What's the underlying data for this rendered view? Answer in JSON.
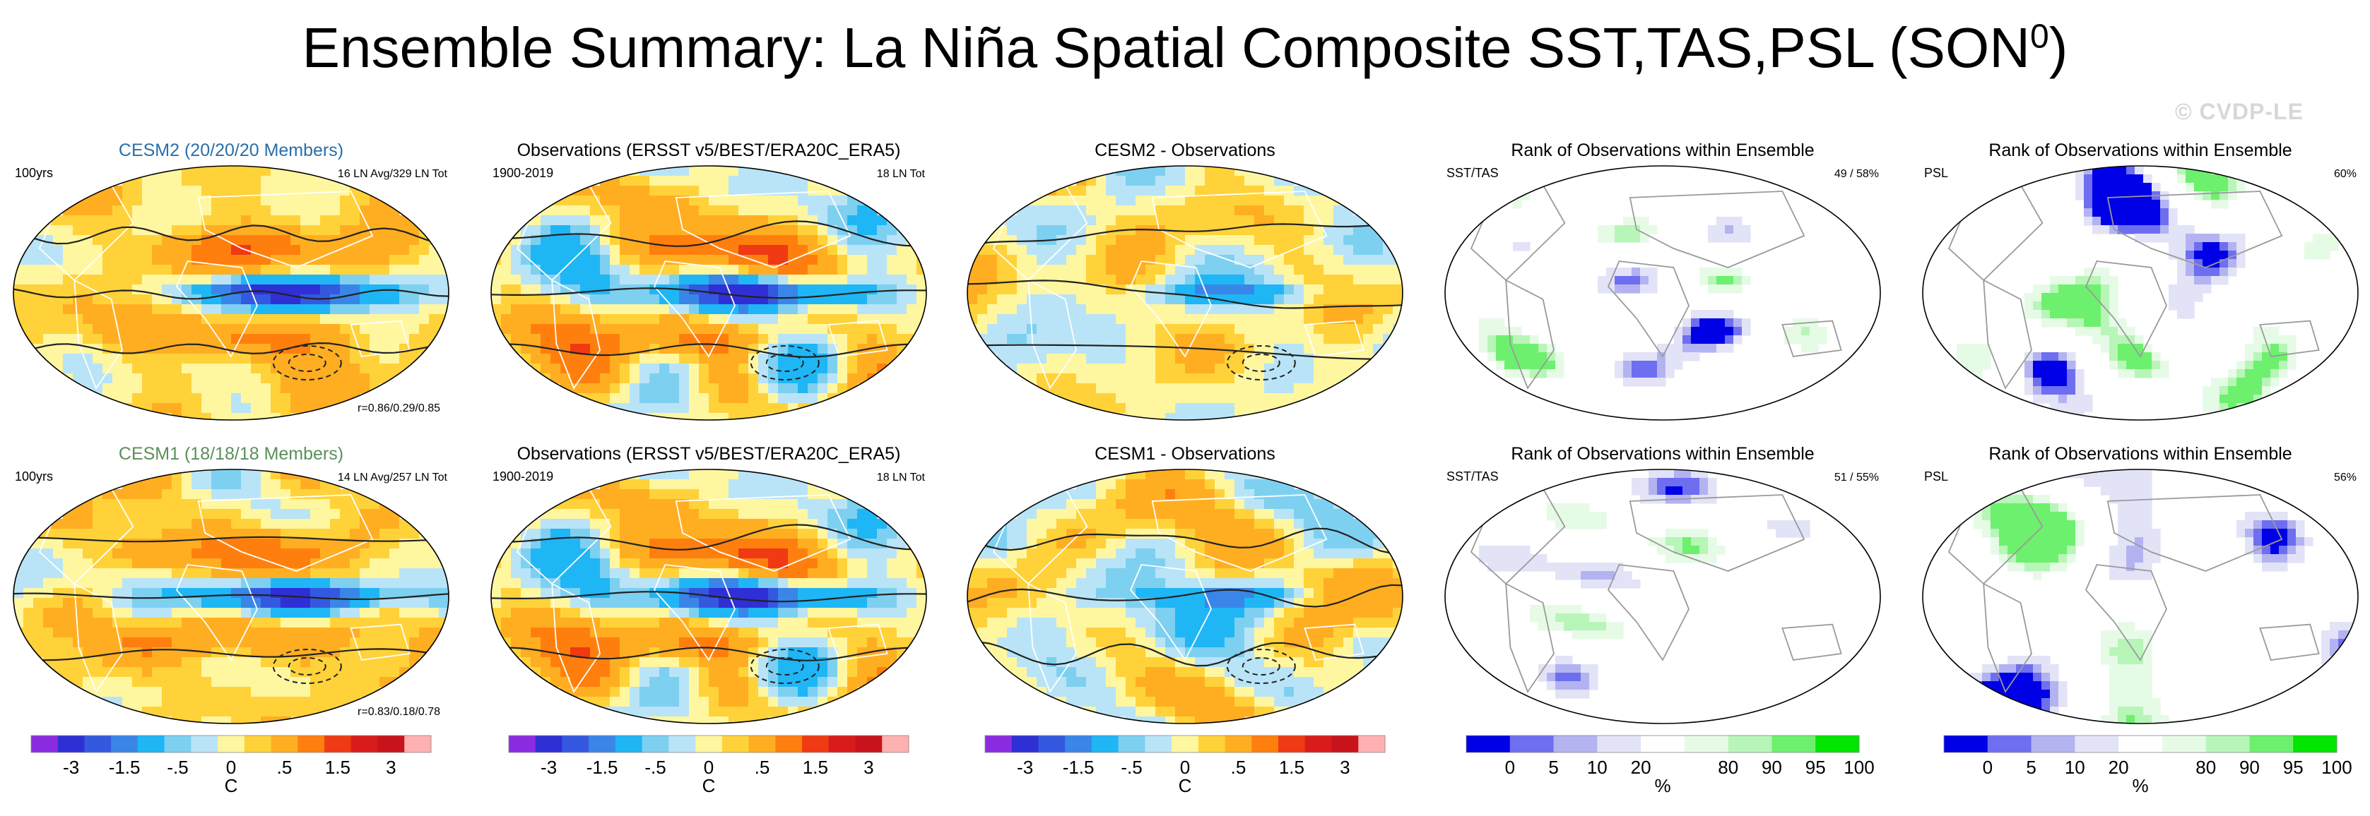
{
  "title": {
    "main": "Ensemble Summary: La Niña Spatial Composite SST,TAS,PSL (SON",
    "superscript": "0",
    "close": ")"
  },
  "watermark": "© CVDP-LE",
  "colors": {
    "diverging": [
      "#8b2be2",
      "#2f2fd6",
      "#3558e0",
      "#3a86e8",
      "#1fb6f5",
      "#7ed0f0",
      "#b9e4f7",
      "#fff6a0",
      "#ffd23a",
      "#ffae22",
      "#ff7f0e",
      "#ef3a13",
      "#d91b1b",
      "#c9131b",
      "#ffb0b0"
    ],
    "rank": [
      "#0000e6",
      "#6e6ef0",
      "#b3b3f2",
      "#e3e3f7",
      "#ffffff",
      "#ffffff",
      "#e6fbe6",
      "#b8f5b8",
      "#6df06d",
      "#00e600"
    ],
    "contour": "#222222",
    "coast": "#ffffff",
    "title_cesm2": "#2a6fa8",
    "title_cesm1": "#5b8f5b"
  },
  "chart_data": [
    {
      "type": "heatmap",
      "row": 0,
      "col": 0,
      "title": "CESM2 (20/20/20 Members)",
      "left_label": "100yrs",
      "right_label": "16 LN Avg/329 LN Tot",
      "bottom_label": "r=0.86/0.29/0.85",
      "variable": "SST/TAS/PSL",
      "units": "C",
      "pattern": "enso",
      "seed": 11
    },
    {
      "type": "heatmap",
      "row": 0,
      "col": 1,
      "title": "Observations (ERSST v5/BEST/ERA20C_ERA5)",
      "left_label": "1900-2019",
      "right_label": "18 LN Tot",
      "bottom_label": "",
      "variable": "SST/TAS/PSL",
      "units": "C",
      "pattern": "obs",
      "seed": 23
    },
    {
      "type": "heatmap",
      "row": 0,
      "col": 2,
      "title": "CESM2 - Observations",
      "left_label": "",
      "right_label": "",
      "bottom_label": "",
      "variable": "SST/TAS/PSL",
      "units": "C",
      "pattern": "diff",
      "seed": 37
    },
    {
      "type": "heatmap",
      "row": 0,
      "col": 3,
      "title": "Rank of Observations within Ensemble",
      "left_label": "SST/TAS",
      "right_label": "49 /  58%",
      "bottom_label": "",
      "variable": "rank",
      "units": "%",
      "pattern": "rank",
      "seed": 41
    },
    {
      "type": "heatmap",
      "row": 0,
      "col": 4,
      "title": "Rank of Observations within Ensemble",
      "left_label": "PSL",
      "right_label": "60%",
      "bottom_label": "",
      "variable": "rank",
      "units": "%",
      "pattern": "rankpsl",
      "seed": 53
    },
    {
      "type": "heatmap",
      "row": 1,
      "col": 0,
      "title": "CESM1 (18/18/18 Members)",
      "left_label": "100yrs",
      "right_label": "14 LN Avg/257 LN Tot",
      "bottom_label": "r=0.83/0.18/0.78",
      "variable": "SST/TAS/PSL",
      "units": "C",
      "pattern": "enso",
      "seed": 67
    },
    {
      "type": "heatmap",
      "row": 1,
      "col": 1,
      "title": "Observations (ERSST v5/BEST/ERA20C_ERA5)",
      "left_label": "1900-2019",
      "right_label": "18 LN Tot",
      "bottom_label": "",
      "variable": "SST/TAS/PSL",
      "units": "C",
      "pattern": "obs",
      "seed": 23
    },
    {
      "type": "heatmap",
      "row": 1,
      "col": 2,
      "title": "CESM1 - Observations",
      "left_label": "",
      "right_label": "",
      "bottom_label": "",
      "variable": "SST/TAS/PSL",
      "units": "C",
      "pattern": "diff",
      "seed": 79
    },
    {
      "type": "heatmap",
      "row": 1,
      "col": 3,
      "title": "Rank of Observations within Ensemble",
      "left_label": "SST/TAS",
      "right_label": "51 /  55%",
      "bottom_label": "",
      "variable": "rank",
      "units": "%",
      "pattern": "rank",
      "seed": 83
    },
    {
      "type": "heatmap",
      "row": 1,
      "col": 4,
      "title": "Rank of Observations within Ensemble",
      "left_label": "PSL",
      "right_label": "56%",
      "bottom_label": "",
      "variable": "rank",
      "units": "%",
      "pattern": "rankpsl",
      "seed": 97
    }
  ],
  "colorbars": [
    {
      "col": 0,
      "type": "diverging",
      "ticks": [
        "-3",
        "-1.5",
        "-.5",
        "0",
        ".5",
        "1.5",
        "3"
      ],
      "label": "C"
    },
    {
      "col": 1,
      "type": "diverging",
      "ticks": [
        "-3",
        "-1.5",
        "-.5",
        "0",
        ".5",
        "1.5",
        "3"
      ],
      "label": "C"
    },
    {
      "col": 2,
      "type": "diverging",
      "ticks": [
        "-3",
        "-1.5",
        "-.5",
        "0",
        ".5",
        "1.5",
        "3"
      ],
      "label": "C"
    },
    {
      "col": 3,
      "type": "rank",
      "ticks": [
        "0",
        "5",
        "10",
        "20",
        "80",
        "90",
        "95",
        "100"
      ],
      "label": "%"
    },
    {
      "col": 4,
      "type": "rank",
      "ticks": [
        "0",
        "5",
        "10",
        "20",
        "80",
        "90",
        "95",
        "100"
      ],
      "label": "%"
    }
  ]
}
